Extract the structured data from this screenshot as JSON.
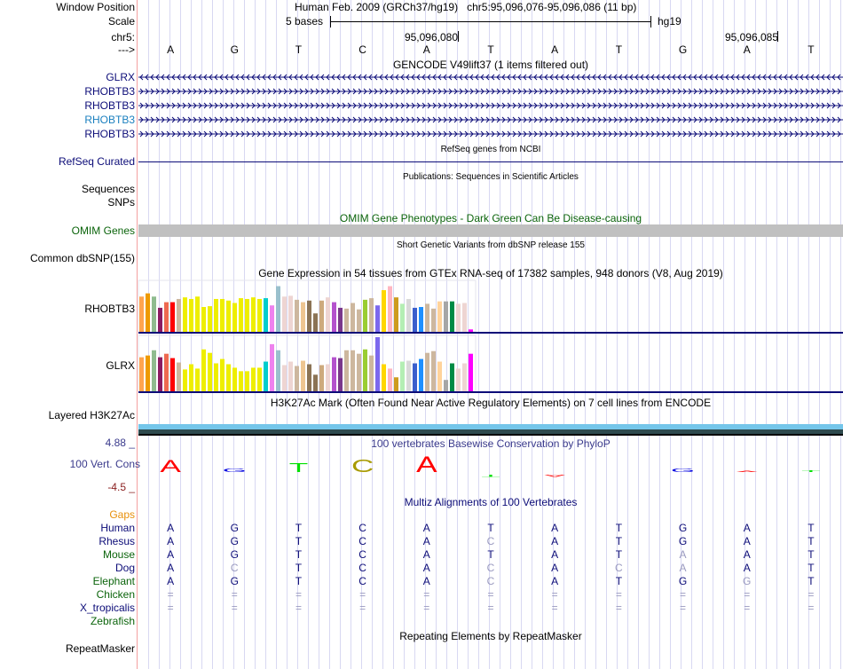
{
  "header": {
    "window_position_label": "Window Position",
    "window_position_text": "Human Feb. 2009 (GRCh37/hg19)   chr5:95,096,076-95,096,086 (11 bp)",
    "scale_label": "Scale",
    "scale_text": "5 bases",
    "scale_assembly": "hg19",
    "chrom_label": "chr5:",
    "coord1": "95,096,080",
    "coord2": "95,096,085",
    "strand_label": "--->",
    "bases": [
      "A",
      "G",
      "T",
      "C",
      "A",
      "T",
      "A",
      "T",
      "G",
      "A",
      "T"
    ]
  },
  "gencode": {
    "title": "GENCODE V49lift37 (1 items filtered out)",
    "genes": [
      {
        "name": "GLRX",
        "strand": "-",
        "color": "#0c0c78"
      },
      {
        "name": "RHOBTB3",
        "strand": "+",
        "color": "#0c0c78"
      },
      {
        "name": "RHOBTB3",
        "strand": "+",
        "color": "#0c0c78"
      },
      {
        "name": "RHOBTB3",
        "strand": "+",
        "color": "#1a7fbf"
      },
      {
        "name": "RHOBTB3",
        "strand": "+",
        "color": "#0c0c78"
      }
    ]
  },
  "refseq": {
    "title": "RefSeq genes from NCBI",
    "label": "RefSeq Curated"
  },
  "publications": {
    "title": "Publications: Sequences in Scientific Articles",
    "label1": "Sequences",
    "label2": "SNPs"
  },
  "omim": {
    "title": "OMIM Gene Phenotypes - Dark Green Can Be Disease-causing",
    "label": "OMIM Genes"
  },
  "dbsnp": {
    "title": "Short Genetic Variants from dbSNP release 155",
    "label": "Common dbSNP(155)"
  },
  "gtex": {
    "title": "Gene Expression in 54 tissues from GTEx RNA-seq of 17382 samples, 948 donors (V8, Aug 2019)",
    "colors": [
      "#FFA54F",
      "#EE9A00",
      "#8FBC8F",
      "#8B1C62",
      "#EE6A50",
      "#FF0000",
      "#CDB79E",
      "#EEEE00",
      "#EEEE00",
      "#EEEE00",
      "#EEEE00",
      "#EEEE00",
      "#EEEE00",
      "#EEEE00",
      "#EEEE00",
      "#EEEE00",
      "#EEEE00",
      "#EEEE00",
      "#EEEE00",
      "#EEEE00",
      "#00CDCD",
      "#EE82EE",
      "#9AC0CD",
      "#EED5D2",
      "#EED5D2",
      "#CDB79E",
      "#EEC591",
      "#8B7355",
      "#8B7355",
      "#CDAA7D",
      "#EED5D2",
      "#B452CD",
      "#7A378B",
      "#CDB79E",
      "#CDB79E",
      "#CDB79E",
      "#9ACD32",
      "#CDB79E",
      "#7B68EE",
      "#FFD700",
      "#FFB6C1",
      "#CD9B1D",
      "#B4EEB4",
      "#D9D9D9",
      "#3A5FCD",
      "#1E90FF",
      "#CDB79E",
      "#CDB79E",
      "#FFD39B",
      "#A6A6A6",
      "#008B45",
      "#EED5D2",
      "#EED5D2",
      "#FF00FF"
    ],
    "genes": [
      {
        "name": "RHOBTB3",
        "values": [
          44,
          48,
          44,
          30,
          37,
          37,
          41,
          43,
          41,
          44,
          31,
          32,
          41,
          41,
          39,
          36,
          42,
          41,
          43,
          41,
          42,
          33,
          57,
          44,
          45,
          40,
          37,
          39,
          23,
          39,
          43,
          37,
          30,
          29,
          36,
          28,
          40,
          42,
          33,
          52,
          57,
          43,
          35,
          41,
          30,
          31,
          35,
          29,
          38,
          38,
          38,
          35,
          36,
          3
        ]
      },
      {
        "name": "GLRX",
        "values": [
          39,
          41,
          47,
          39,
          43,
          38,
          33,
          25,
          31,
          26,
          48,
          44,
          32,
          37,
          31,
          27,
          23,
          23,
          27,
          27,
          34,
          54,
          47,
          30,
          34,
          29,
          35,
          31,
          19,
          30,
          31,
          39,
          38,
          47,
          47,
          43,
          48,
          41,
          62,
          31,
          26,
          16,
          34,
          35,
          32,
          37,
          44,
          46,
          34,
          13,
          32,
          26,
          32,
          43
        ]
      }
    ]
  },
  "h3k27ac": {
    "title": "H3K27Ac Mark (Often Found Near Active Regulatory Elements) on 7 cell lines from ENCODE",
    "label": "Layered H3K27Ac"
  },
  "phylop": {
    "title": "100 vertebrates Basewise Conservation by PhyloP",
    "label": "100 Vert. Cons",
    "ymax_label": "4.88 _",
    "ymin_label": "-4.5 _",
    "ylim": [
      -4.5,
      4.88
    ],
    "scores": [
      2.6,
      0.7,
      2.0,
      2.8,
      3.4,
      -0.5,
      -0.5,
      0,
      0.7,
      0.2,
      0.4
    ],
    "colors": {
      "A": "#ff0000",
      "C": "#a89a00",
      "G": "#0000e0",
      "T": "#00e000"
    }
  },
  "multiz": {
    "title": "Multiz Alignments of 100 Vertebrates",
    "gaps_label": "Gaps",
    "species": [
      {
        "name": "Human",
        "color": "navy",
        "seq": [
          "A",
          "G",
          "T",
          "C",
          "A",
          "T",
          "A",
          "T",
          "G",
          "A",
          "T"
        ],
        "faded": []
      },
      {
        "name": "Rhesus",
        "color": "navy",
        "seq": [
          "A",
          "G",
          "T",
          "C",
          "A",
          "C",
          "A",
          "T",
          "G",
          "A",
          "T"
        ],
        "faded": [
          5
        ]
      },
      {
        "name": "Mouse",
        "color": "green",
        "seq": [
          "A",
          "G",
          "T",
          "C",
          "A",
          "T",
          "A",
          "T",
          "A",
          "A",
          "T"
        ],
        "faded": [
          8
        ]
      },
      {
        "name": "Dog",
        "color": "navy",
        "seq": [
          "A",
          "C",
          "T",
          "C",
          "A",
          "C",
          "A",
          "C",
          "A",
          "A",
          "T"
        ],
        "faded": [
          1,
          5,
          7,
          8
        ]
      },
      {
        "name": "Elephant",
        "color": "green",
        "seq": [
          "A",
          "G",
          "T",
          "C",
          "A",
          "C",
          "A",
          "T",
          "G",
          "G",
          "T"
        ],
        "faded": [
          5,
          9
        ]
      },
      {
        "name": "Chicken",
        "color": "green",
        "seq": [
          "=",
          "=",
          "=",
          "=",
          "=",
          "=",
          "=",
          "=",
          "=",
          "=",
          "="
        ],
        "faded": [
          0,
          1,
          2,
          3,
          4,
          5,
          6,
          7,
          8,
          9,
          10
        ]
      },
      {
        "name": "X_tropicalis",
        "color": "navy",
        "seq": [
          "=",
          "=",
          "=",
          "=",
          "=",
          "=",
          "=",
          "=",
          "=",
          "=",
          "="
        ],
        "faded": [
          0,
          1,
          2,
          3,
          4,
          5,
          6,
          7,
          8,
          9,
          10
        ]
      },
      {
        "name": "Zebrafish",
        "color": "green",
        "seq": [],
        "faded": []
      }
    ]
  },
  "repeatmasker": {
    "title": "Repeating Elements by RepeatMasker",
    "label": "RepeatMasker"
  }
}
